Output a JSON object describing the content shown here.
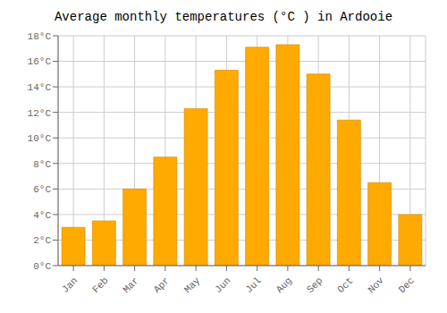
{
  "chart_data": {
    "type": "bar",
    "title": "Average monthly temperatures (°C ) in Ardooie",
    "categories": [
      "Jan",
      "Feb",
      "Mar",
      "Apr",
      "May",
      "Jun",
      "Jul",
      "Aug",
      "Sep",
      "Oct",
      "Nov",
      "Dec"
    ],
    "values": [
      3.0,
      3.5,
      6.0,
      8.5,
      12.3,
      15.3,
      17.1,
      17.3,
      15.0,
      11.4,
      6.5,
      4.0
    ],
    "color": "#FFAA00",
    "ylim": [
      0,
      18
    ],
    "yticks": [
      {
        "value": 0,
        "label": "0°C"
      },
      {
        "value": 2,
        "label": "2°C"
      },
      {
        "value": 4,
        "label": "4°C"
      },
      {
        "value": 6,
        "label": "6°C"
      },
      {
        "value": 8,
        "label": "8°C"
      },
      {
        "value": 10,
        "label": "10°C"
      },
      {
        "value": 12,
        "label": "12°C"
      },
      {
        "value": 14,
        "label": "14°C"
      },
      {
        "value": 16,
        "label": "16°C"
      },
      {
        "value": 18,
        "label": "18°C"
      }
    ],
    "grid": true
  }
}
